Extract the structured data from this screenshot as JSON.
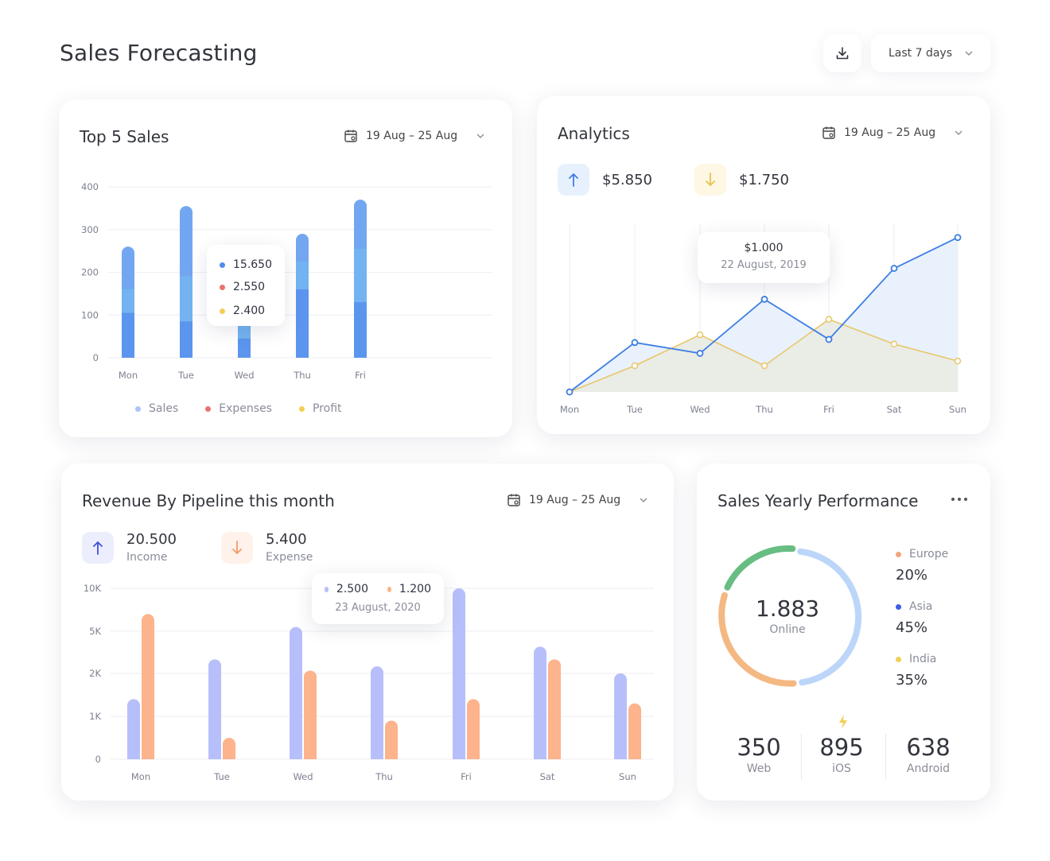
{
  "header": {
    "title": "Sales Forecasting",
    "range_label": "Last 7 days",
    "download_icon": "download-icon",
    "chevron_icon": "chevron-down-icon"
  },
  "top_sales": {
    "title": "Top 5 Sales",
    "date_range": "19 Aug – 25 Aug",
    "tooltip": {
      "sales": "15.650",
      "expenses": "2.550",
      "profit": "2.400"
    },
    "legend": [
      "Sales",
      "Expenses",
      "Profit"
    ],
    "colors": {
      "sales": "#a9c6f6",
      "expenses": "#e8736e",
      "profit": "#f2cf56",
      "bar_dark": "#5b95ee",
      "bar_light": "#73b3f1"
    }
  },
  "analytics": {
    "title": "Analytics",
    "date_range": "19 Aug – 25 Aug",
    "up_value": "$5.850",
    "down_value": "$1.750",
    "tooltip": {
      "value": "$1.000",
      "date": "22 August, 2019"
    },
    "colors": {
      "blue": "#3d7ee2",
      "yellow": "#e8c76a"
    }
  },
  "revenue": {
    "title": "Revenue By Pipeline this month",
    "date_range": "19 Aug – 25 Aug",
    "income_value": "20.500",
    "income_label": "Income",
    "expense_value": "5.400",
    "expense_label": "Expense",
    "tooltip": {
      "a": "2.500",
      "b": "1.200",
      "date": "23 August, 2020"
    },
    "colors": {
      "income": "#b7bffb",
      "expense": "#fdb38c"
    }
  },
  "yearly": {
    "title": "Sales Yearly Performance",
    "center_value": "1.883",
    "center_label": "Online",
    "regions": [
      {
        "name": "Europe",
        "value": "20%",
        "color": "#f4a47a"
      },
      {
        "name": "Asia",
        "value": "45%",
        "color": "#3f5de8"
      },
      {
        "name": "India",
        "value": "35%",
        "color": "#f2cf56"
      }
    ],
    "platforms": [
      {
        "value": "350",
        "label": "Web"
      },
      {
        "value": "895",
        "label": "iOS"
      },
      {
        "value": "638",
        "label": "Android"
      }
    ],
    "donut_colors": {
      "green": "#68bd83",
      "light_blue": "#bcd6fa",
      "orange": "#f4b883"
    }
  },
  "chart_data": [
    {
      "type": "bar",
      "title": "Top 5 Sales",
      "categories": [
        "Mon",
        "Tue",
        "Wed",
        "Thu",
        "Fri"
      ],
      "series": [
        {
          "name": "Sales",
          "values": [
            260,
            355,
            200,
            290,
            370
          ]
        },
        {
          "name": "Expenses",
          "values": [
            160,
            190,
            90,
            225,
            255
          ]
        },
        {
          "name": "Profit",
          "values": [
            105,
            85,
            45,
            160,
            130
          ]
        }
      ],
      "yticks": [
        0,
        100,
        200,
        300,
        400
      ],
      "ylim": [
        0,
        400
      ],
      "legend": "bottom"
    },
    {
      "type": "area",
      "title": "Analytics",
      "categories": [
        "Mon",
        "Tue",
        "Wed",
        "Thu",
        "Fri",
        "Sat",
        "Sun"
      ],
      "series": [
        {
          "values": [
            0,
            32,
            25,
            60,
            34,
            80,
            100
          ]
        },
        {
          "values": [
            0,
            17,
            37,
            17,
            47,
            31,
            20
          ]
        }
      ],
      "ylim": [
        0,
        105
      ],
      "grid": "vertical"
    },
    {
      "type": "bar",
      "title": "Revenue By Pipeline this month",
      "categories": [
        "Mon",
        "Tue",
        "Wed",
        "Thu",
        "Fri",
        "Sat",
        "Sun"
      ],
      "series": [
        {
          "values": [
            1400,
            3000,
            5500,
            2500,
            10000,
            3900,
            2000
          ]
        },
        {
          "values": [
            7000,
            500,
            2200,
            900,
            1400,
            3000,
            1300
          ]
        }
      ],
      "yticks": [
        "0",
        "1K",
        "2K",
        "5K",
        "10K"
      ],
      "legend": "none"
    }
  ]
}
